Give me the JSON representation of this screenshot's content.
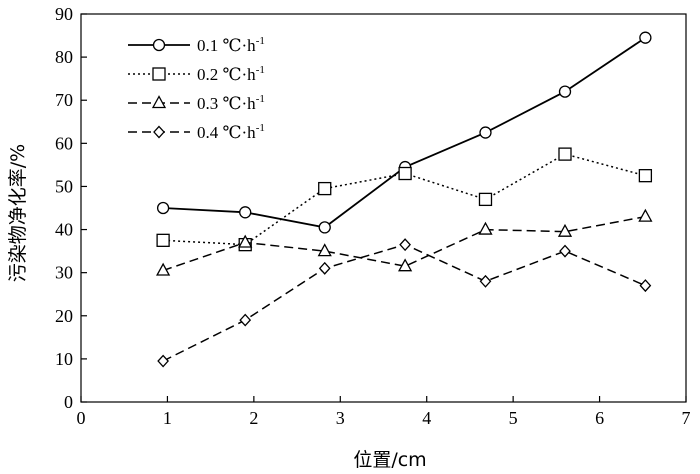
{
  "chart_data": {
    "type": "line",
    "title": "",
    "xlabel": "位置/cm",
    "ylabel": "污染物净化率/%",
    "xlim": [
      0,
      7
    ],
    "ylim": [
      0,
      90
    ],
    "xticks": [
      0,
      1,
      2,
      3,
      4,
      5,
      6,
      7
    ],
    "yticks": [
      0,
      10,
      20,
      30,
      40,
      50,
      60,
      70,
      80,
      90
    ],
    "grid": false,
    "legend_position": "top-left",
    "series": [
      {
        "name": "0.1 ℃·h-1",
        "name_main": "0.1 ℃·h",
        "name_sup": "-1",
        "marker": "circle",
        "line_style": "solid",
        "x": [
          0.95,
          1.9,
          2.82,
          3.75,
          4.68,
          5.6,
          6.53
        ],
        "y": [
          45,
          44,
          40.5,
          54.5,
          62.5,
          72,
          84.5
        ]
      },
      {
        "name": "0.2 ℃·h-1",
        "name_main": "0.2 ℃·h",
        "name_sup": "-1",
        "marker": "square",
        "line_style": "dotted",
        "x": [
          0.95,
          1.9,
          2.82,
          3.75,
          4.68,
          5.6,
          6.53
        ],
        "y": [
          37.5,
          36.5,
          49.5,
          53,
          47,
          57.5,
          52.5
        ]
      },
      {
        "name": "0.3 ℃·h-1",
        "name_main": "0.3 ℃·h",
        "name_sup": "-1",
        "marker": "triangle",
        "line_style": "dashed",
        "x": [
          0.95,
          1.9,
          2.82,
          3.75,
          4.68,
          5.6,
          6.53
        ],
        "y": [
          30.5,
          37,
          35,
          31.5,
          40,
          39.5,
          43
        ]
      },
      {
        "name": "0.4 ℃·h-1",
        "name_main": "0.4 ℃·h",
        "name_sup": "-1",
        "marker": "diamond",
        "line_style": "dashed",
        "x": [
          0.95,
          1.9,
          2.82,
          3.75,
          4.68,
          5.6,
          6.53
        ],
        "y": [
          9.5,
          19,
          31,
          36.5,
          28,
          35,
          27
        ]
      }
    ]
  }
}
